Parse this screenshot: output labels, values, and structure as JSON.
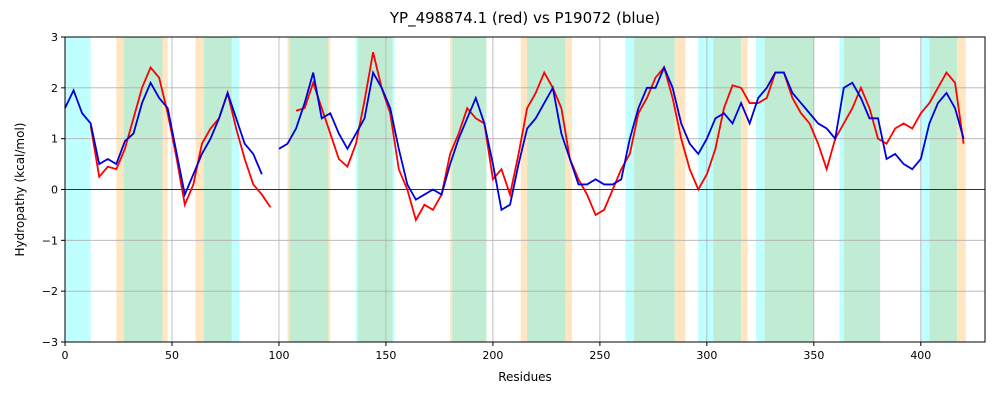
{
  "chart_data": {
    "type": "line",
    "title": "YP_498874.1 (red) vs P19072 (blue)",
    "xlabel": "Residues",
    "ylabel": "Hydropathy (kcal/mol)",
    "x": [
      0,
      4,
      8,
      12,
      16,
      20,
      24,
      28,
      32,
      36,
      40,
      44,
      48,
      52,
      56,
      60,
      64,
      68,
      72,
      76,
      80,
      84,
      88,
      92,
      96,
      100,
      104,
      108,
      112,
      116,
      120,
      124,
      128,
      132,
      136,
      140,
      144,
      148,
      152,
      156,
      160,
      164,
      168,
      172,
      176,
      180,
      184,
      188,
      192,
      196,
      200,
      204,
      208,
      212,
      216,
      220,
      224,
      228,
      232,
      236,
      240,
      244,
      248,
      252,
      256,
      260,
      264,
      268,
      272,
      276,
      280,
      284,
      288,
      292,
      296,
      300,
      304,
      308,
      312,
      316,
      320,
      324,
      328,
      332,
      336,
      340,
      344,
      348,
      352,
      356,
      360,
      364,
      368,
      372,
      376,
      380,
      384,
      388,
      392,
      396,
      400,
      404,
      408,
      412,
      416,
      420
    ],
    "series": [
      {
        "name": "YP_498874.1",
        "color": "#ff0000",
        "values": [
          null,
          null,
          null,
          1.25,
          0.25,
          0.45,
          0.4,
          0.8,
          1.4,
          2.0,
          2.4,
          2.2,
          1.5,
          0.65,
          -0.3,
          0.1,
          0.9,
          1.2,
          1.4,
          1.9,
          1.2,
          0.6,
          0.1,
          -0.1,
          -0.35,
          null,
          null,
          1.55,
          1.6,
          2.1,
          1.6,
          1.1,
          0.6,
          0.45,
          0.9,
          1.75,
          2.7,
          2.0,
          1.5,
          0.4,
          0.0,
          -0.6,
          -0.3,
          -0.4,
          -0.1,
          0.7,
          1.1,
          1.6,
          1.4,
          1.3,
          0.2,
          0.4,
          -0.1,
          0.7,
          1.6,
          1.9,
          2.3,
          2.0,
          1.6,
          0.6,
          0.2,
          -0.1,
          -0.5,
          -0.4,
          0.0,
          0.4,
          0.7,
          1.5,
          1.8,
          2.2,
          2.4,
          1.8,
          1.0,
          0.4,
          0.0,
          0.3,
          0.8,
          1.6,
          2.05,
          2.0,
          1.7,
          1.7,
          1.8,
          2.3,
          2.3,
          1.8,
          1.5,
          1.3,
          0.9,
          0.4,
          1.0,
          1.3,
          1.6,
          2.0,
          1.6,
          1.0,
          0.9,
          1.2,
          1.3,
          1.2,
          1.5,
          1.7,
          2.0,
          2.3,
          2.1,
          0.9
        ]
      },
      {
        "name": "P19072",
        "color": "#0000dd",
        "values": [
          1.6,
          1.95,
          1.5,
          1.3,
          0.5,
          0.6,
          0.5,
          0.95,
          1.1,
          1.7,
          2.1,
          1.8,
          1.6,
          0.75,
          -0.1,
          0.3,
          0.7,
          1.0,
          1.4,
          1.9,
          1.4,
          0.9,
          0.7,
          0.3,
          null,
          0.8,
          0.9,
          1.2,
          1.7,
          2.3,
          1.4,
          1.5,
          1.1,
          0.8,
          1.1,
          1.4,
          2.3,
          2.0,
          1.6,
          0.8,
          0.1,
          -0.2,
          -0.1,
          0.0,
          -0.1,
          0.5,
          1.0,
          1.4,
          1.8,
          1.3,
          0.5,
          -0.4,
          -0.3,
          0.5,
          1.2,
          1.4,
          1.7,
          2.0,
          1.1,
          0.6,
          0.1,
          0.1,
          0.2,
          0.1,
          0.1,
          0.2,
          1.0,
          1.6,
          2.0,
          2.0,
          2.4,
          2.0,
          1.3,
          0.9,
          0.7,
          1.0,
          1.4,
          1.5,
          1.3,
          1.7,
          1.3,
          1.8,
          2.0,
          2.3,
          2.3,
          1.9,
          1.7,
          1.5,
          1.3,
          1.2,
          1.0,
          2.0,
          2.1,
          1.8,
          1.4,
          1.4,
          0.6,
          0.7,
          0.5,
          0.4,
          0.6,
          1.3,
          1.7,
          1.9,
          1.6,
          1.0
        ]
      }
    ],
    "spans": [
      {
        "x0": 0,
        "x1": 12,
        "color": "#bfffff"
      },
      {
        "x0": 24,
        "x1": 48,
        "color": "#ffe6c2"
      },
      {
        "x0": 27.5,
        "x1": 45.5,
        "color": "#c0ecd3"
      },
      {
        "x0": 61,
        "x1": 65,
        "color": "#ffe6c2"
      },
      {
        "x0": 65,
        "x1": 78,
        "color": "#c0ecd3"
      },
      {
        "x0": 78,
        "x1": 81.5,
        "color": "#bfffff"
      },
      {
        "x0": 104,
        "x1": 124,
        "color": "#ffe6c2"
      },
      {
        "x0": 105,
        "x1": 123,
        "color": "#c0ecd3"
      },
      {
        "x0": 136,
        "x1": 154,
        "color": "#bfffff"
      },
      {
        "x0": 137,
        "x1": 153,
        "color": "#c0ecd3"
      },
      {
        "x0": 180,
        "x1": 181,
        "color": "#ffe6c2"
      },
      {
        "x0": 181,
        "x1": 197,
        "color": "#c0ecd3"
      },
      {
        "x0": 213,
        "x1": 216,
        "color": "#ffe6c2"
      },
      {
        "x0": 216,
        "x1": 234,
        "color": "#c0ecd3"
      },
      {
        "x0": 234,
        "x1": 237,
        "color": "#ffe6c2"
      },
      {
        "x0": 262,
        "x1": 266,
        "color": "#bfffff"
      },
      {
        "x0": 266,
        "x1": 285,
        "color": "#c0ecd3"
      },
      {
        "x0": 285,
        "x1": 290,
        "color": "#ffe6c2"
      },
      {
        "x0": 296,
        "x1": 303,
        "color": "#bfffff"
      },
      {
        "x0": 303,
        "x1": 316,
        "color": "#c0ecd3"
      },
      {
        "x0": 316,
        "x1": 319,
        "color": "#ffe6c2"
      },
      {
        "x0": 323,
        "x1": 327,
        "color": "#bfffff"
      },
      {
        "x0": 327,
        "x1": 350,
        "color": "#c0ecd3"
      },
      {
        "x0": 362,
        "x1": 364,
        "color": "#bfffff"
      },
      {
        "x0": 364,
        "x1": 381,
        "color": "#c0ecd3"
      },
      {
        "x0": 400,
        "x1": 404,
        "color": "#bfffff"
      },
      {
        "x0": 404,
        "x1": 417,
        "color": "#c0ecd3"
      },
      {
        "x0": 417,
        "x1": 421,
        "color": "#ffe6c2"
      }
    ],
    "hline": 0,
    "xlim": [
      0,
      430
    ],
    "ylim": [
      -3,
      3
    ],
    "xticks": [
      0,
      50,
      100,
      150,
      200,
      250,
      300,
      350,
      400
    ],
    "yticks": [
      {
        "value": -3,
        "label": "−3"
      },
      {
        "value": -2,
        "label": "−2"
      },
      {
        "value": -1,
        "label": "−1"
      },
      0,
      1,
      2,
      3
    ],
    "grid": true
  }
}
